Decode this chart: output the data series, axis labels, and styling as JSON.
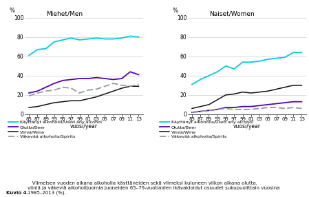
{
  "years_idx": [
    0,
    1,
    2,
    3,
    4,
    5,
    6,
    7,
    8,
    9,
    10,
    11,
    12,
    13
  ],
  "men": {
    "used_any": [
      61,
      67,
      68,
      75,
      77,
      79,
      77,
      78,
      79,
      78,
      78,
      79,
      81,
      80
    ],
    "beer": [
      22,
      24,
      28,
      32,
      35,
      36,
      37,
      37,
      38,
      37,
      36,
      37,
      44,
      41
    ],
    "wine": [
      7,
      8,
      10,
      12,
      13,
      14,
      14,
      16,
      18,
      21,
      24,
      27,
      29,
      29
    ],
    "spirits": [
      19,
      22,
      24,
      25,
      28,
      27,
      22,
      25,
      26,
      29,
      32,
      30,
      29,
      31
    ]
  },
  "women": {
    "used_any": [
      31,
      36,
      40,
      44,
      50,
      47,
      54,
      54,
      55,
      57,
      58,
      59,
      64,
      64
    ],
    "beer": [
      2,
      3,
      4,
      5,
      7,
      7,
      8,
      8,
      9,
      10,
      11,
      12,
      13,
      13
    ],
    "wine": [
      6,
      8,
      10,
      15,
      20,
      21,
      23,
      22,
      23,
      24,
      26,
      28,
      30,
      30
    ],
    "spirits": [
      2,
      3,
      4,
      5,
      6,
      5,
      5,
      5,
      6,
      7,
      7,
      6,
      7,
      6
    ]
  },
  "colors": {
    "used_any": "#00CCDD",
    "beer": "#5500BB",
    "wine": "#111111",
    "spirits": "#999999"
  },
  "x_tick_labels": [
    "85",
    "87",
    "89",
    "93",
    "95",
    "97",
    "99",
    "01",
    "03",
    "05",
    "07",
    "09",
    "11",
    "13"
  ],
  "ylim": [
    0,
    100
  ],
  "yticks": [
    0,
    20,
    40,
    60,
    80,
    100
  ],
  "title_men": "Miehet/Men",
  "title_women": "Naiset/Women",
  "ylabel": "%",
  "xlabel": "vuosi/year",
  "legend_labels": [
    "Käyttänyt alkoholia/Used any alcohol",
    "Olutta/Beer",
    "Viiniä/Wine",
    "Väkevää alkoholia/Spirits"
  ],
  "caption_bold": "Kuvio 4.",
  "caption_rest": "   Viimeisen vuoden aikana alkoholia käyttäneiden sekä viimeksi kuluneen viikon aikana olutta,\nviiniä ja väkeviä alkoholijuomia juoneiden 65–79-vuotiaiden ikävakioidut osuudet sukupuolittain vuosina\n1985–2013 (%).",
  "background_color": "#ffffff",
  "grid_color": "#cccccc"
}
